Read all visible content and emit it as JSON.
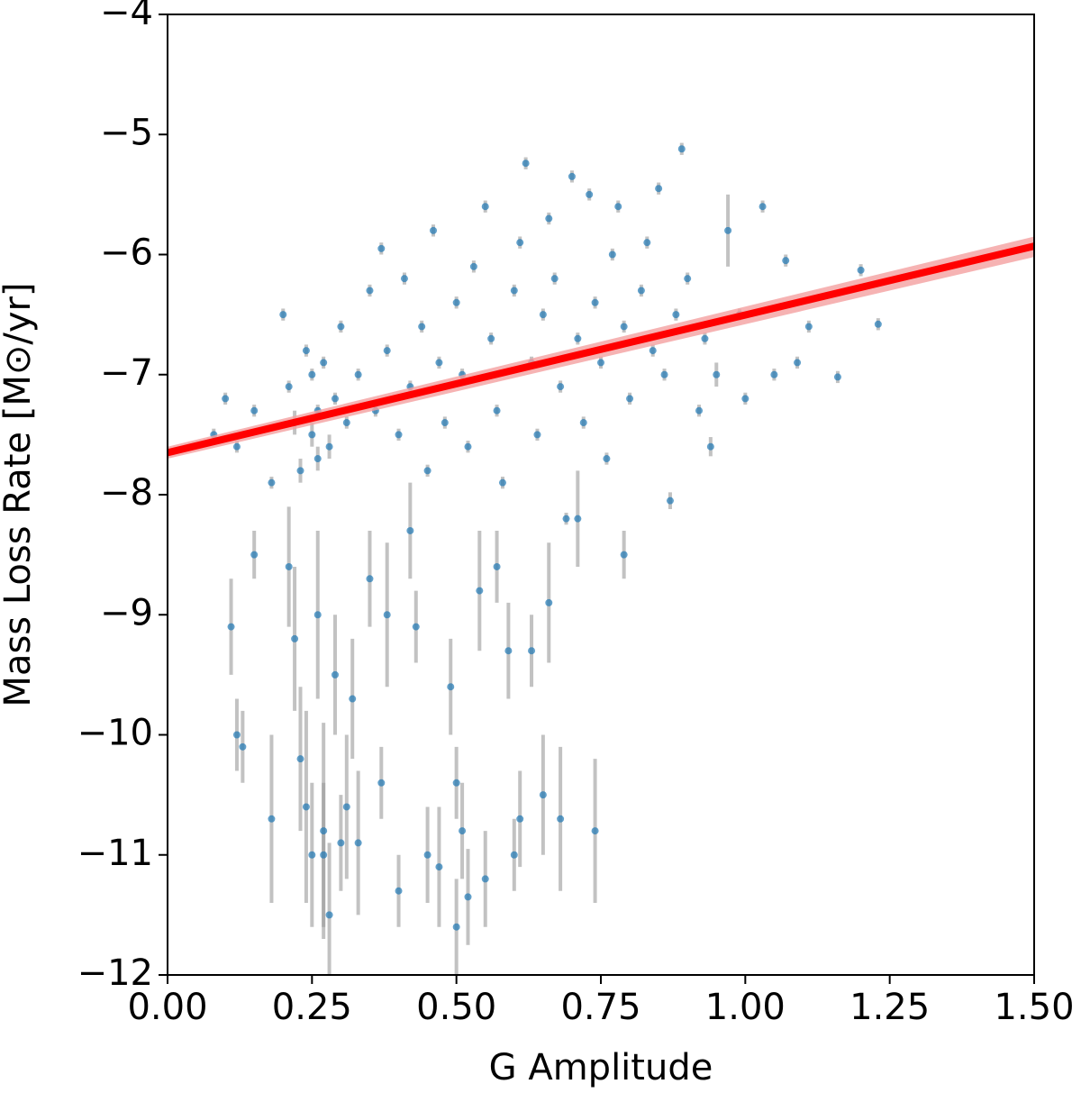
{
  "chart_data": {
    "type": "scatter",
    "x_label": "G Amplitude",
    "y_label": "Mass Loss Rate [M⊙/yr]",
    "xlim": [
      0,
      1.5
    ],
    "ylim": [
      -12,
      -4
    ],
    "xticks": [
      {
        "value": 0,
        "label": "0.00"
      },
      {
        "value": 0.25,
        "label": "0.25"
      },
      {
        "value": 0.5,
        "label": "0.50"
      },
      {
        "value": 0.75,
        "label": "0.75"
      },
      {
        "value": 1,
        "label": "1.00"
      },
      {
        "value": 1.25,
        "label": "1.25"
      },
      {
        "value": 1.5,
        "label": "1.50"
      }
    ],
    "yticks": [
      {
        "value": -12,
        "label": "−12"
      },
      {
        "value": -11,
        "label": "−11"
      },
      {
        "value": -10,
        "label": "−10"
      },
      {
        "value": -9,
        "label": "−9"
      },
      {
        "value": -8,
        "label": "−8"
      },
      {
        "value": -7,
        "label": "−7"
      },
      {
        "value": -6,
        "label": "−6"
      },
      {
        "value": -5,
        "label": "−5"
      },
      {
        "value": -4,
        "label": "−4"
      }
    ],
    "series": [
      {
        "color": "#1f77b4",
        "error_color": "#999999",
        "x": [
          0.08,
          0.1,
          0.12,
          0.15,
          0.18,
          0.2,
          0.21,
          0.22,
          0.23,
          0.24,
          0.25,
          0.25,
          0.26,
          0.26,
          0.27,
          0.28,
          0.29,
          0.3,
          0.31,
          0.33,
          0.35,
          0.36,
          0.37,
          0.38,
          0.4,
          0.41,
          0.42,
          0.44,
          0.45,
          0.46,
          0.47,
          0.48,
          0.5,
          0.51,
          0.52,
          0.53,
          0.55,
          0.56,
          0.57,
          0.58,
          0.6,
          0.61,
          0.62,
          0.63,
          0.64,
          0.65,
          0.66,
          0.67,
          0.68,
          0.69,
          0.7,
          0.71,
          0.72,
          0.73,
          0.74,
          0.75,
          0.76,
          0.77,
          0.78,
          0.79,
          0.8,
          0.82,
          0.83,
          0.84,
          0.85,
          0.86,
          0.87,
          0.88,
          0.89,
          0.9,
          0.92,
          0.93,
          0.94,
          0.95,
          0.97,
          0.99,
          1.0,
          1.03,
          1.05,
          1.07,
          1.09,
          1.11,
          1.16,
          1.2,
          1.23,
          0.11,
          0.12,
          0.13,
          0.15,
          0.18,
          0.21,
          0.22,
          0.23,
          0.24,
          0.25,
          0.26,
          0.27,
          0.27,
          0.28,
          0.29,
          0.3,
          0.31,
          0.32,
          0.33,
          0.35,
          0.37,
          0.38,
          0.4,
          0.42,
          0.43,
          0.45,
          0.47,
          0.49,
          0.5,
          0.51,
          0.52,
          0.54,
          0.55,
          0.57,
          0.59,
          0.6,
          0.61,
          0.63,
          0.65,
          0.66,
          0.68,
          0.71,
          0.74,
          0.79,
          0.5
        ],
        "values": [
          -7.5,
          -7.2,
          -7.6,
          -7.3,
          -7.9,
          -6.5,
          -7.1,
          -7.4,
          -7.8,
          -6.8,
          -7.5,
          -7.0,
          -7.7,
          -7.3,
          -6.9,
          -7.6,
          -7.2,
          -6.6,
          -7.4,
          -7.0,
          -6.3,
          -7.3,
          -5.95,
          -6.8,
          -7.5,
          -6.2,
          -7.1,
          -6.6,
          -7.8,
          -5.8,
          -6.9,
          -7.4,
          -6.4,
          -7.0,
          -7.6,
          -6.1,
          -5.6,
          -6.7,
          -7.3,
          -7.9,
          -6.3,
          -5.9,
          -5.24,
          -6.9,
          -7.5,
          -6.5,
          -5.7,
          -6.2,
          -7.1,
          -8.2,
          -5.35,
          -6.7,
          -7.4,
          -5.5,
          -6.4,
          -6.9,
          -7.7,
          -6.0,
          -5.6,
          -6.6,
          -7.2,
          -6.3,
          -5.9,
          -6.8,
          -5.45,
          -7.0,
          -8.05,
          -6.5,
          -5.12,
          -6.2,
          -7.3,
          -6.7,
          -7.6,
          -7.0,
          -5.8,
          -6.5,
          -7.2,
          -5.6,
          -7.0,
          -6.05,
          -6.9,
          -6.6,
          -7.02,
          -6.13,
          -6.58,
          -9.1,
          -10.0,
          -10.1,
          -8.5,
          -10.7,
          -8.6,
          -9.2,
          -10.2,
          -10.6,
          -11.0,
          -9.0,
          -10.8,
          -11.0,
          -11.5,
          -9.5,
          -10.9,
          -10.6,
          -9.7,
          -10.9,
          -8.7,
          -10.4,
          -9.0,
          -11.3,
          -8.3,
          -9.1,
          -11.0,
          -11.1,
          -9.6,
          -11.6,
          -10.8,
          -11.35,
          -8.8,
          -11.2,
          -8.6,
          -9.3,
          -11.0,
          -10.7,
          -9.3,
          -10.5,
          -8.9,
          -10.7,
          -8.2,
          -10.8,
          -8.5,
          -10.4
        ],
        "errors": [
          0.05,
          0.05,
          0.05,
          0.05,
          0.05,
          0.05,
          0.05,
          0.1,
          0.1,
          0.05,
          0.1,
          0.05,
          0.1,
          0.05,
          0.05,
          0.1,
          0.05,
          0.05,
          0.05,
          0.05,
          0.05,
          0.05,
          0.05,
          0.05,
          0.05,
          0.05,
          0.05,
          0.05,
          0.05,
          0.05,
          0.05,
          0.05,
          0.05,
          0.05,
          0.05,
          0.05,
          0.05,
          0.05,
          0.05,
          0.05,
          0.05,
          0.05,
          0.05,
          0.05,
          0.05,
          0.05,
          0.05,
          0.05,
          0.05,
          0.05,
          0.05,
          0.05,
          0.05,
          0.05,
          0.05,
          0.05,
          0.05,
          0.05,
          0.05,
          0.05,
          0.05,
          0.05,
          0.05,
          0.05,
          0.05,
          0.05,
          0.07,
          0.05,
          0.05,
          0.05,
          0.05,
          0.05,
          0.08,
          0.1,
          0.3,
          0.05,
          0.05,
          0.05,
          0.05,
          0.05,
          0.05,
          0.05,
          0.05,
          0.05,
          0.05,
          0.4,
          0.3,
          0.3,
          0.2,
          0.7,
          0.5,
          0.6,
          0.6,
          0.8,
          0.6,
          0.7,
          0.9,
          0.6,
          0.6,
          0.5,
          0.4,
          0.6,
          0.5,
          0.6,
          0.4,
          0.3,
          0.6,
          0.3,
          0.4,
          0.3,
          0.4,
          0.5,
          0.4,
          0.4,
          0.4,
          0.4,
          0.5,
          0.4,
          0.3,
          0.4,
          0.3,
          0.4,
          0.3,
          0.5,
          0.5,
          0.6,
          0.4,
          0.6,
          0.2,
          0.3
        ]
      }
    ],
    "fit": {
      "color": "#ff0000",
      "band_color": "#f4a0a0",
      "x": [
        0,
        1.5
      ],
      "values": [
        -7.65,
        -5.93
      ],
      "lower": [
        -7.7,
        -6.02
      ],
      "upper": [
        -7.6,
        -5.85
      ]
    }
  }
}
